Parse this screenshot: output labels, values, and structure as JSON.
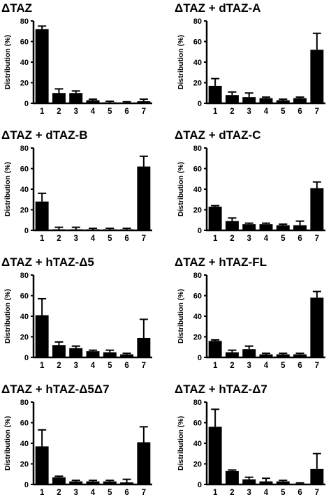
{
  "chart_data": [
    {
      "type": "bar",
      "title": "ΔTAZ",
      "ylabel": "Distribution (%)",
      "ylim": [
        0,
        80
      ],
      "yticks": [
        0,
        20,
        40,
        60,
        80
      ],
      "categories": [
        "1",
        "2",
        "3",
        "4",
        "5",
        "6",
        "7"
      ],
      "values": [
        72,
        10,
        10,
        3,
        1,
        0.5,
        2
      ],
      "errors": [
        3,
        4,
        2,
        1,
        1,
        1,
        2
      ]
    },
    {
      "type": "bar",
      "title": "ΔTAZ + dTAZ-A",
      "ylabel": "Distribution (%)",
      "ylim": [
        0,
        80
      ],
      "yticks": [
        0,
        20,
        40,
        60,
        80
      ],
      "categories": [
        "1",
        "2",
        "3",
        "4",
        "5",
        "6",
        "7"
      ],
      "values": [
        17,
        8,
        6,
        5,
        3,
        5,
        52
      ],
      "errors": [
        7,
        3,
        4,
        1,
        1,
        1,
        16
      ]
    },
    {
      "type": "bar",
      "title": "ΔTAZ + dTAZ-B",
      "ylabel": "Distribution (%)",
      "ylim": [
        0,
        80
      ],
      "yticks": [
        0,
        20,
        40,
        60,
        80
      ],
      "categories": [
        "1",
        "2",
        "3",
        "4",
        "5",
        "6",
        "7"
      ],
      "values": [
        28,
        1,
        1,
        1,
        1,
        1,
        62
      ],
      "errors": [
        8,
        2,
        2,
        1,
        1,
        1,
        10
      ]
    },
    {
      "type": "bar",
      "title": "ΔTAZ + dTAZ-C",
      "ylabel": "Distribution (%)",
      "ylim": [
        0,
        80
      ],
      "yticks": [
        0,
        20,
        40,
        60,
        80
      ],
      "categories": [
        "1",
        "2",
        "3",
        "4",
        "5",
        "6",
        "7"
      ],
      "values": [
        23,
        9,
        6,
        6,
        5,
        5,
        41
      ],
      "errors": [
        1,
        3,
        1,
        1,
        1,
        4,
        6
      ]
    },
    {
      "type": "bar",
      "title": "ΔTAZ + hTAZ-Δ5",
      "ylabel": "Distribution (%)",
      "ylim": [
        0,
        80
      ],
      "yticks": [
        0,
        20,
        40,
        60,
        80
      ],
      "categories": [
        "1",
        "2",
        "3",
        "4",
        "5",
        "6",
        "7"
      ],
      "values": [
        41,
        12,
        9,
        6,
        5,
        3,
        19
      ],
      "errors": [
        16,
        3,
        2,
        1,
        2,
        1,
        18
      ]
    },
    {
      "type": "bar",
      "title": "ΔTAZ + hTAZ-FL",
      "ylabel": "Distribution (%)",
      "ylim": [
        0,
        80
      ],
      "yticks": [
        0,
        20,
        40,
        60,
        80
      ],
      "categories": [
        "1",
        "2",
        "3",
        "4",
        "5",
        "6",
        "7"
      ],
      "values": [
        16,
        5,
        8,
        3,
        3,
        3,
        58
      ],
      "errors": [
        1,
        2,
        3,
        1,
        1,
        1,
        6
      ]
    },
    {
      "type": "bar",
      "title": "ΔTAZ + hTAZ-Δ5Δ7",
      "ylabel": "Distribution (%)",
      "ylim": [
        0,
        80
      ],
      "yticks": [
        0,
        20,
        40,
        60,
        80
      ],
      "categories": [
        "1",
        "2",
        "3",
        "4",
        "5",
        "6",
        "7"
      ],
      "values": [
        37,
        7,
        3,
        3,
        3,
        2,
        41
      ],
      "errors": [
        16,
        1,
        1,
        1,
        1,
        3,
        15
      ]
    },
    {
      "type": "bar",
      "title": "ΔTAZ + hTAZ-Δ7",
      "ylabel": "Distribution (%)",
      "ylim": [
        0,
        80
      ],
      "yticks": [
        0,
        20,
        40,
        60,
        80
      ],
      "categories": [
        "1",
        "2",
        "3",
        "4",
        "5",
        "6",
        "7"
      ],
      "values": [
        56,
        13,
        5,
        3,
        3,
        0.5,
        15
      ],
      "errors": [
        17,
        1,
        2,
        3,
        1,
        1,
        15
      ]
    }
  ]
}
